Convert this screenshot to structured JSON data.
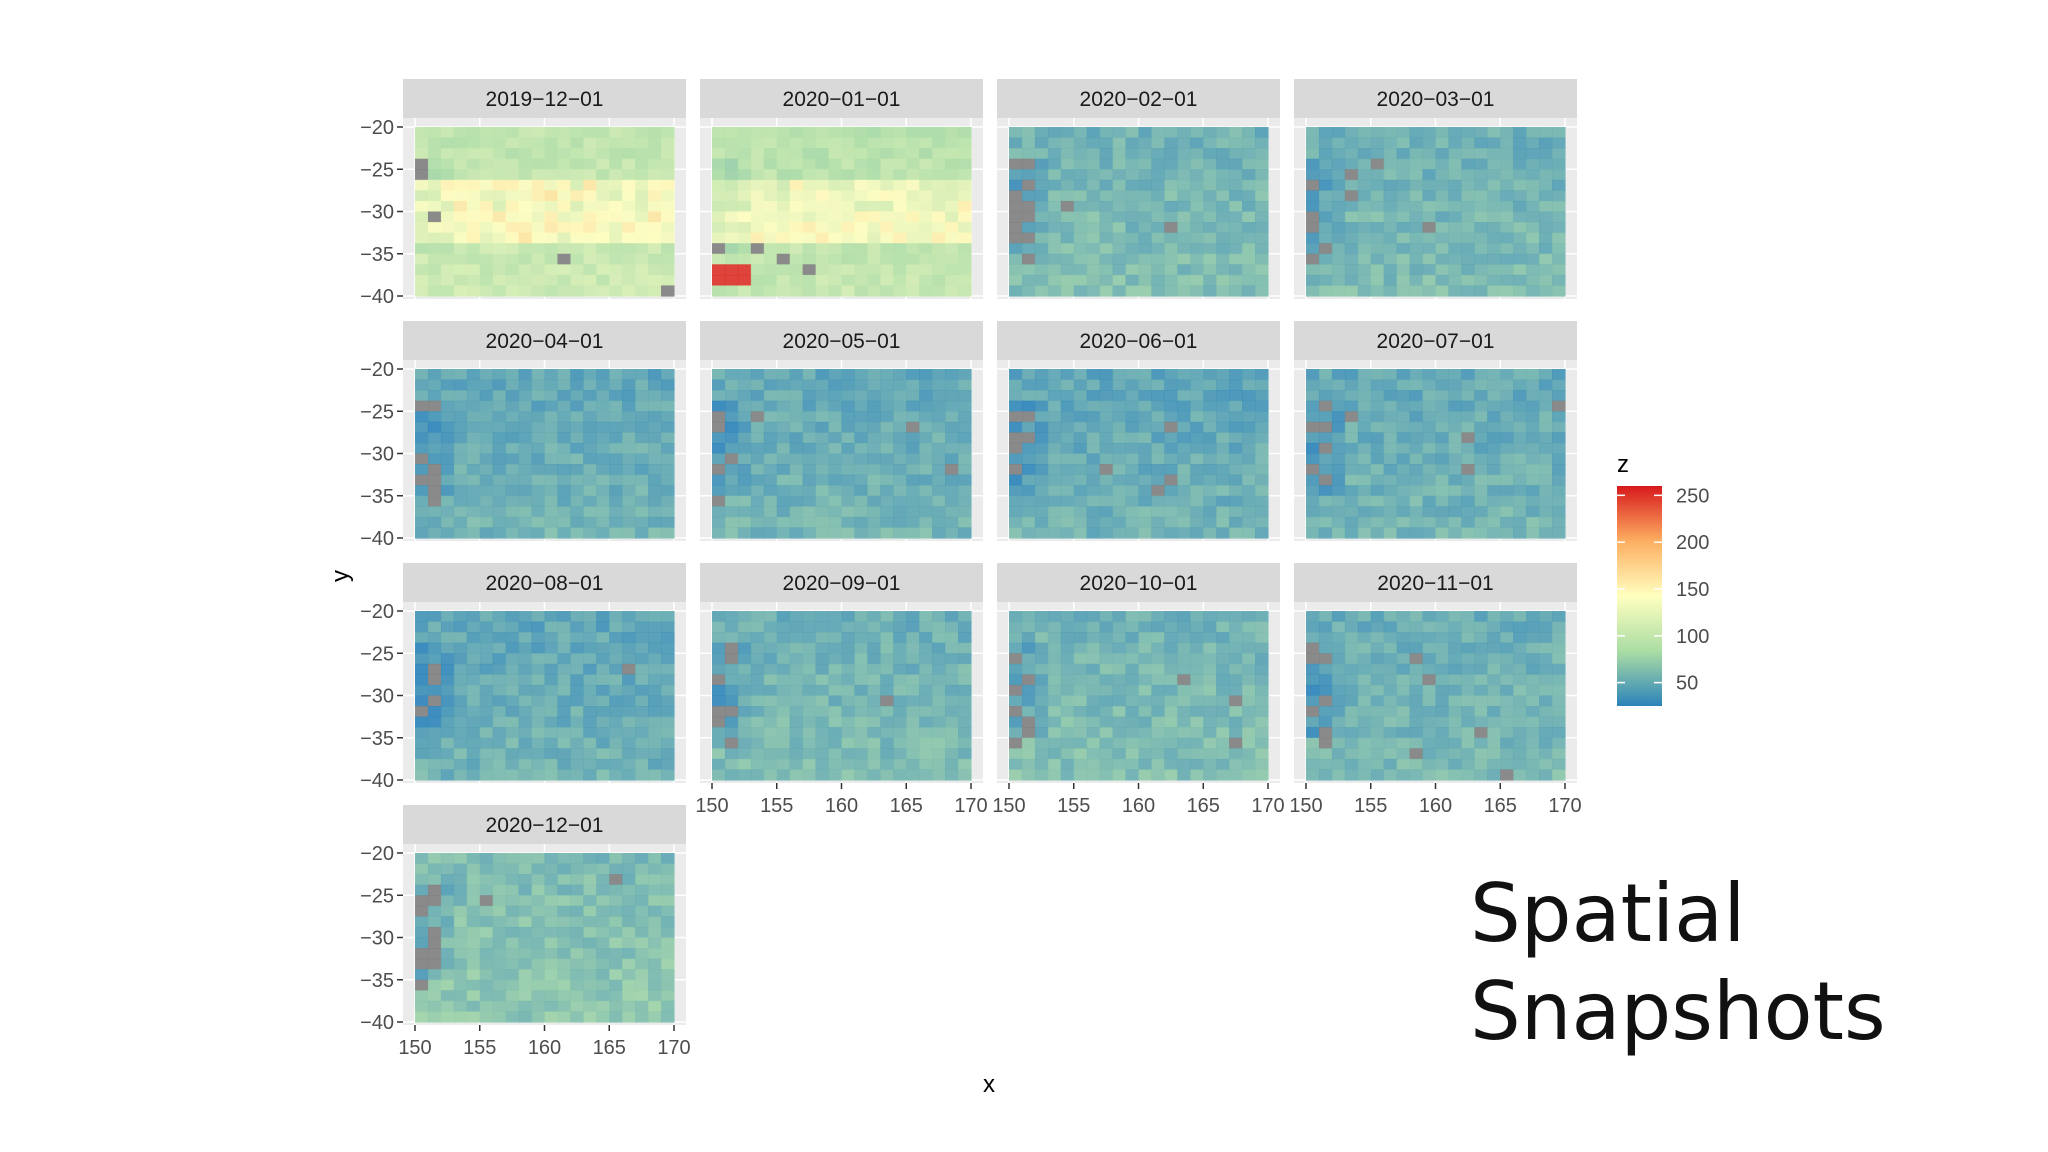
{
  "slide": {
    "title": "Spatial\nSnapshots"
  },
  "chart_data": {
    "type": "heatmap",
    "facets": [
      {
        "label": "2019−12−01",
        "mean": 95,
        "highband": true,
        "missing": 4
      },
      {
        "label": "2020−01−01",
        "mean": 90,
        "highband": true,
        "missing": 3,
        "hotspot": 250
      },
      {
        "label": "2020−02−01",
        "mean": 52,
        "missing": 12
      },
      {
        "label": "2020−03−01",
        "mean": 50,
        "missing": 10
      },
      {
        "label": "2020−04−01",
        "mean": 44,
        "missing": 8
      },
      {
        "label": "2020−05−01",
        "mean": 45,
        "missing": 9
      },
      {
        "label": "2020−06−01",
        "mean": 43,
        "missing": 9
      },
      {
        "label": "2020−07−01",
        "mean": 45,
        "missing": 9
      },
      {
        "label": "2020−08−01",
        "mean": 43,
        "missing": 8
      },
      {
        "label": "2020−09−01",
        "mean": 50,
        "missing": 10
      },
      {
        "label": "2020−10−01",
        "mean": 52,
        "missing": 12
      },
      {
        "label": "2020−11−01",
        "mean": 48,
        "missing": 10
      },
      {
        "label": "2020−12−01",
        "mean": 58,
        "missing": 16
      }
    ],
    "x": {
      "title": "x",
      "range": [
        150,
        170
      ],
      "ticks": [
        150,
        155,
        160,
        165,
        170
      ]
    },
    "y": {
      "title": "y",
      "range": [
        -40,
        -20
      ],
      "ticks": [
        -20,
        -25,
        -30,
        -35,
        -40
      ],
      "tick_labels": [
        "−20",
        "−25",
        "−30",
        "−35",
        "−40"
      ]
    },
    "grid": true,
    "legend": {
      "title": "z",
      "position": "right",
      "breaks": [
        250,
        200,
        150,
        100,
        50
      ],
      "range": [
        25,
        260
      ],
      "colors": [
        "#2b83ba",
        "#abdda4",
        "#ffffbf",
        "#fdae61",
        "#d7191c"
      ]
    },
    "na_color": "#7f7f7f"
  }
}
